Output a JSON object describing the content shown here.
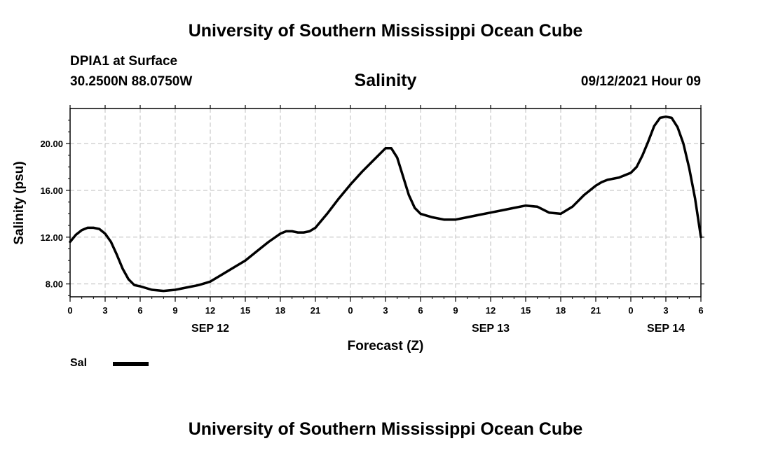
{
  "header": {
    "title": "University of Southern Mississippi Ocean Cube",
    "station": "DPIA1 at Surface",
    "coords": "30.2500N  88.0750W",
    "variable": "Salinity",
    "datetime": "09/12/2021 Hour 09"
  },
  "footer": {
    "title": "University of Southern Mississippi Ocean Cube"
  },
  "legend": {
    "label": "Sal"
  },
  "chart_data": {
    "type": "line",
    "title": "Salinity",
    "xlabel": "Forecast (Z)",
    "ylabel": "Salinity (psu)",
    "xlim": [
      0,
      54
    ],
    "ylim": [
      6.9,
      23.0
    ],
    "x_ticks": [
      0,
      3,
      6,
      9,
      12,
      15,
      18,
      21,
      24,
      27,
      30,
      33,
      36,
      39,
      42,
      45,
      48,
      51,
      54
    ],
    "x_tick_labels": [
      "0",
      "3",
      "6",
      "9",
      "12",
      "15",
      "18",
      "21",
      "0",
      "3",
      "6",
      "9",
      "12",
      "15",
      "18",
      "21",
      "0",
      "3",
      "6"
    ],
    "y_ticks": [
      8,
      12,
      16,
      20
    ],
    "y_tick_labels": [
      "8.00",
      "12.00",
      "16.00",
      "20.00"
    ],
    "day_labels": [
      {
        "x": 12,
        "label": "SEP 12"
      },
      {
        "x": 36,
        "label": "SEP 13"
      },
      {
        "x": 51,
        "label": "SEP 14"
      }
    ],
    "grid": true,
    "line_color": "#000000",
    "series": [
      {
        "name": "Sal",
        "x": [
          0,
          0.5,
          1,
          1.5,
          2,
          2.5,
          3,
          3.5,
          4,
          4.5,
          5,
          5.5,
          6,
          7,
          8,
          9,
          10,
          11,
          12,
          13,
          14,
          15,
          16,
          17,
          18,
          18.5,
          19,
          19.5,
          20,
          20.5,
          21,
          22,
          23,
          24,
          25,
          26,
          27,
          27.5,
          28,
          28.5,
          29,
          29.5,
          30,
          31,
          32,
          33,
          34,
          35,
          36,
          37,
          38,
          39,
          40,
          41,
          42,
          43,
          44,
          45,
          45.5,
          46,
          47,
          48,
          48.5,
          49,
          49.5,
          50,
          50.5,
          51,
          51.5,
          52,
          52.5,
          53,
          53.5,
          54
        ],
        "y": [
          11.6,
          12.2,
          12.6,
          12.8,
          12.8,
          12.7,
          12.3,
          11.6,
          10.5,
          9.3,
          8.4,
          7.9,
          7.8,
          7.5,
          7.4,
          7.5,
          7.7,
          7.9,
          8.2,
          8.8,
          9.4,
          10.0,
          10.8,
          11.6,
          12.3,
          12.5,
          12.5,
          12.4,
          12.4,
          12.5,
          12.8,
          14.0,
          15.3,
          16.5,
          17.6,
          18.6,
          19.6,
          19.6,
          18.8,
          17.2,
          15.6,
          14.5,
          14.0,
          13.7,
          13.5,
          13.5,
          13.7,
          13.9,
          14.1,
          14.3,
          14.5,
          14.7,
          14.6,
          14.1,
          14.0,
          14.6,
          15.6,
          16.4,
          16.7,
          16.9,
          17.1,
          17.5,
          18.0,
          19.0,
          20.2,
          21.5,
          22.2,
          22.3,
          22.2,
          21.4,
          20.0,
          17.9,
          15.3,
          12.0
        ]
      }
    ]
  }
}
